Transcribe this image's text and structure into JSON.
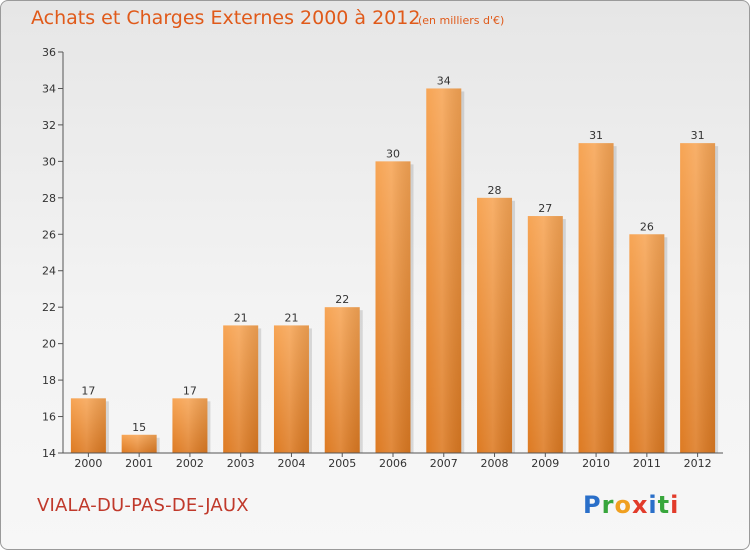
{
  "header": {
    "title": "Achats et Charges Externes 2000 à 2012",
    "unit": "(en milliers d'€)"
  },
  "footer": {
    "commune": "VIALA-DU-PAS-DE-JAUX",
    "logo_text": "Proxiti",
    "logo_letters": [
      "P",
      "r",
      "o",
      "x",
      "i",
      "t",
      "i"
    ]
  },
  "colors": {
    "title": "#e05a1a",
    "commune": "#c0392b",
    "bar_top": "#f7a555",
    "bar_bottom": "#dd7a22",
    "axis": "#555555"
  },
  "chart_data": {
    "type": "bar",
    "categories": [
      "2000",
      "2001",
      "2002",
      "2003",
      "2004",
      "2005",
      "2006",
      "2007",
      "2008",
      "2009",
      "2010",
      "2011",
      "2012"
    ],
    "values": [
      17,
      15,
      17,
      21,
      21,
      22,
      30,
      34,
      28,
      27,
      31,
      26,
      31
    ],
    "title": "Achats et Charges Externes 2000 à 2012",
    "xlabel": "",
    "ylabel": "",
    "ylim": [
      14,
      36
    ],
    "yticks": [
      14,
      16,
      18,
      20,
      22,
      24,
      26,
      28,
      30,
      32,
      34,
      36
    ],
    "grid": false,
    "data_labels": true
  }
}
